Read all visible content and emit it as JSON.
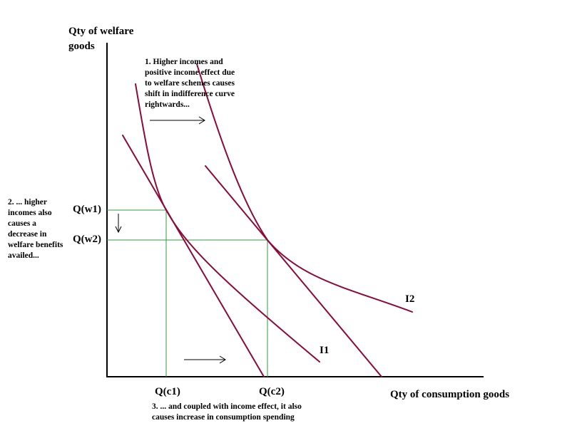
{
  "y_axis_title": "Qty of welfare\ngoods",
  "x_axis_title": "Qty of consumption goods",
  "ticks": {
    "qw1": "Q(w1)",
    "qw2": "Q(w2)",
    "qc1": "Q(c1)",
    "qc2": "Q(c2)"
  },
  "notes": {
    "note1": "1. Higher incomes and\npositive income effect due\nto welfare schemes causes\nshift in indifference curve\nrightwards...",
    "note2": "2. ... higher\nincomes also\ncauses a\ndecrease in\nwelfare benefits\navailed...",
    "note3": "3. ... and coupled with income effect, it also\ncauses increase in consumption spending"
  },
  "curves": {
    "i1": "I1",
    "i2": "I2"
  },
  "colors": {
    "curve": "#8b0a3a",
    "guide": "#2e9c44",
    "axis": "#000000"
  }
}
